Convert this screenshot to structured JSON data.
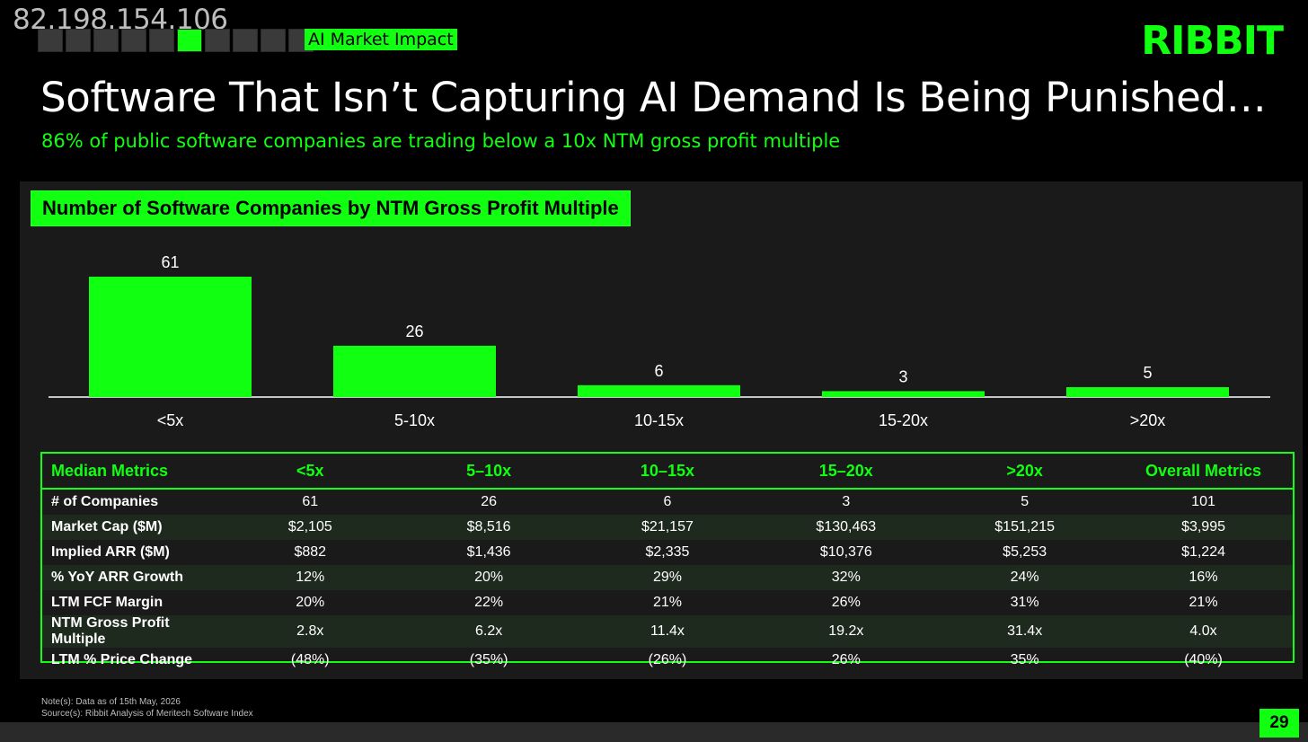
{
  "header": {
    "ip": "82.198.154.106",
    "progress": {
      "total": 10,
      "active": 6
    },
    "section": "AI Market Impact",
    "logo": "RIBBIT",
    "title": "Software That Isn’t Capturing AI Demand Is Being Punished…",
    "subtitle": "86% of public software companies are trading below a 10x NTM gross profit multiple"
  },
  "chart_data": {
    "type": "bar",
    "title": "Number of Software Companies by NTM Gross Profit Multiple",
    "categories": [
      "<5x",
      "5-10x",
      "10-15x",
      "15-20x",
      ">20x"
    ],
    "values": [
      61,
      26,
      6,
      3,
      5
    ],
    "xlabel": "",
    "ylabel": "",
    "ylim": [
      0,
      61
    ],
    "grid": false,
    "bar_color": "#11ff11"
  },
  "metrics": {
    "headers": [
      "Median Metrics",
      "<5x",
      "5–10x",
      "10–15x",
      "15–20x",
      ">20x",
      "Overall Metrics"
    ],
    "rows": [
      [
        "# of Companies",
        "61",
        "26",
        "6",
        "3",
        "5",
        "101"
      ],
      [
        "Market Cap ($M)",
        "$2,105",
        "$8,516",
        "$21,157",
        "$130,463",
        "$151,215",
        "$3,995"
      ],
      [
        "Implied ARR ($M)",
        "$882",
        "$1,436",
        "$2,335",
        "$10,376",
        "$5,253",
        "$1,224"
      ],
      [
        "% YoY ARR Growth",
        "12%",
        "20%",
        "29%",
        "32%",
        "24%",
        "16%"
      ],
      [
        "LTM FCF Margin",
        "20%",
        "22%",
        "21%",
        "26%",
        "31%",
        "21%"
      ],
      [
        "NTM Gross Profit Multiple",
        "2.8x",
        "6.2x",
        "11.4x",
        "19.2x",
        "31.4x",
        "4.0x"
      ],
      [
        "LTM % Price Change",
        "(48%)",
        "(35%)",
        "(26%)",
        "26%",
        "35%",
        "(40%)"
      ]
    ]
  },
  "footer": {
    "note": "Note(s): Data as of 15th May, 2026",
    "source": "Source(s): Ribbit Analysis of Meritech Software Index",
    "page": "29"
  },
  "colors": {
    "accent": "#11ff11",
    "background": "#000000",
    "panel": "#1a1a1a"
  }
}
